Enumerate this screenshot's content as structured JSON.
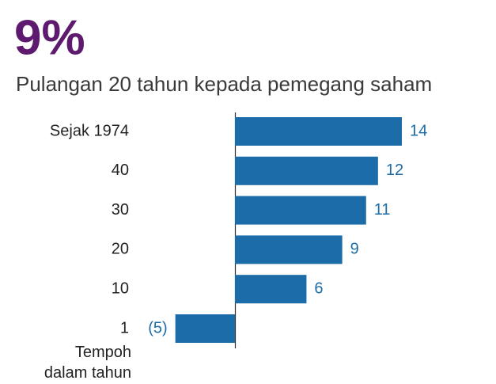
{
  "chart_data": {
    "type": "bar",
    "orientation": "horizontal",
    "title": "9%",
    "subtitle": "Pulangan 20 tahun kepada pemegang saham",
    "y_label": "Tempoh\ndalam tahun",
    "categories": [
      "Sejak 1974",
      "40",
      "30",
      "20",
      "10",
      "1"
    ],
    "values": [
      14,
      12,
      11,
      9,
      6,
      -5
    ],
    "value_labels": [
      "14",
      "12",
      "11",
      "9",
      "6",
      "(5)"
    ],
    "color": "#1b6ca8"
  }
}
